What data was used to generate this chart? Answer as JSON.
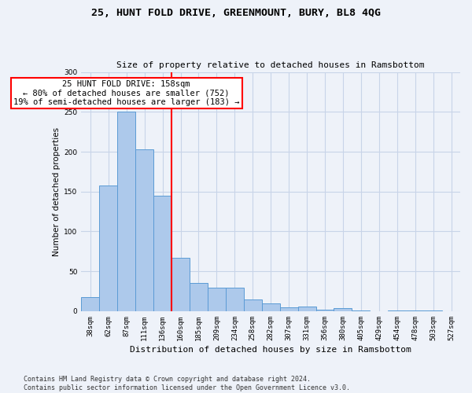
{
  "title": "25, HUNT FOLD DRIVE, GREENMOUNT, BURY, BL8 4QG",
  "subtitle": "Size of property relative to detached houses in Ramsbottom",
  "xlabel": "Distribution of detached houses by size in Ramsbottom",
  "ylabel": "Number of detached properties",
  "categories": [
    "38sqm",
    "62sqm",
    "87sqm",
    "111sqm",
    "136sqm",
    "160sqm",
    "185sqm",
    "209sqm",
    "234sqm",
    "258sqm",
    "282sqm",
    "307sqm",
    "331sqm",
    "356sqm",
    "380sqm",
    "405sqm",
    "429sqm",
    "454sqm",
    "478sqm",
    "503sqm",
    "527sqm"
  ],
  "values": [
    18,
    158,
    250,
    203,
    145,
    67,
    35,
    30,
    30,
    15,
    10,
    5,
    6,
    2,
    4,
    1,
    0,
    1,
    1,
    1,
    0
  ],
  "bar_color": "#adc9eb",
  "bar_edge_color": "#5b9bd5",
  "property_line_x": 5,
  "property_line_label": "25 HUNT FOLD DRIVE: 158sqm",
  "annotation_line1": "← 80% of detached houses are smaller (752)",
  "annotation_line2": "19% of semi-detached houses are larger (183) →",
  "annotation_box_color": "white",
  "annotation_box_edge_color": "red",
  "property_line_color": "red",
  "ylim": [
    0,
    300
  ],
  "yticks": [
    0,
    50,
    100,
    150,
    200,
    250,
    300
  ],
  "footer": "Contains HM Land Registry data © Crown copyright and database right 2024.\nContains public sector information licensed under the Open Government Licence v3.0.",
  "background_color": "#eef2f9",
  "plot_background_color": "#eef2f9",
  "grid_color": "#c8d4e8",
  "title_fontsize": 9.5,
  "subtitle_fontsize": 8,
  "ylabel_fontsize": 7.5,
  "xlabel_fontsize": 8,
  "tick_fontsize": 6.5,
  "annotation_fontsize": 7.5,
  "footer_fontsize": 6
}
